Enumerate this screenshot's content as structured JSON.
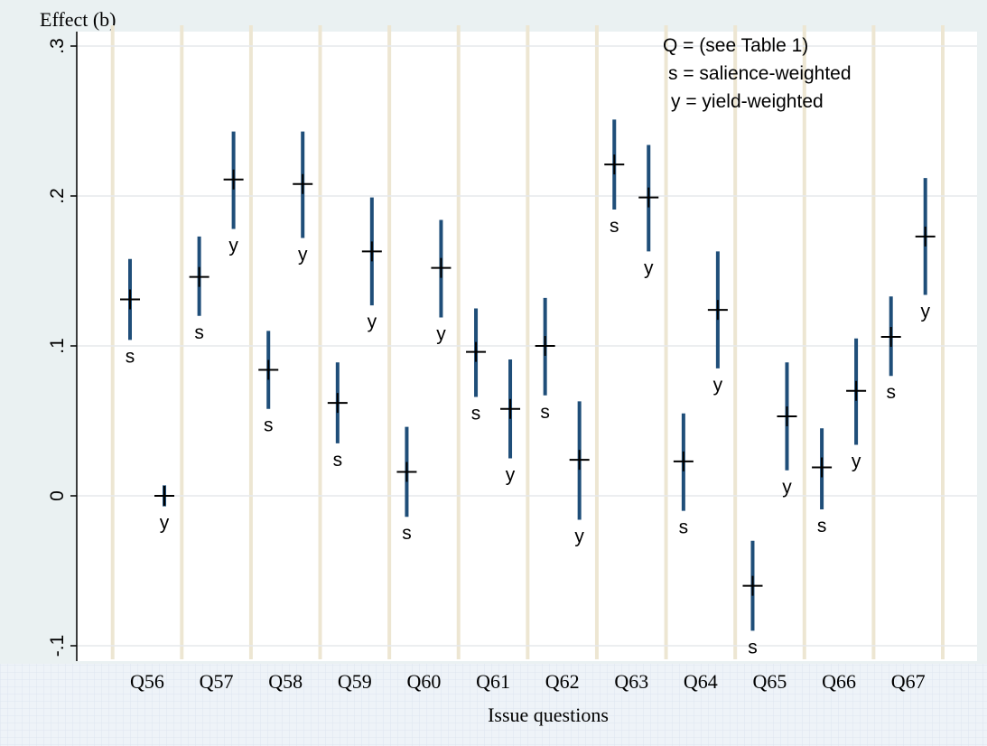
{
  "chart_data": {
    "type": "errorbar",
    "title": "Effect (b)",
    "xlabel": "Issue questions",
    "legend_lines": [
      "Q = (see Table 1)",
      "s = salience-weighted",
      "y = yield-weighted"
    ],
    "categories": [
      "Q56",
      "Q57",
      "Q58",
      "Q59",
      "Q60",
      "Q61",
      "Q62",
      "Q63",
      "Q64",
      "Q65",
      "Q66",
      "Q67"
    ],
    "series": [
      {
        "name": "s",
        "color": "#1f4e79",
        "values": [
          0.131,
          0.146,
          0.084,
          0.062,
          0.016,
          0.096,
          0.1,
          0.221,
          0.023,
          -0.06,
          0.019,
          0.106
        ],
        "lower": [
          0.104,
          0.12,
          0.058,
          0.035,
          -0.014,
          0.066,
          0.067,
          0.191,
          -0.01,
          -0.09,
          -0.009,
          0.08
        ],
        "upper": [
          0.158,
          0.173,
          0.11,
          0.089,
          0.046,
          0.125,
          0.132,
          0.251,
          0.055,
          -0.03,
          0.045,
          0.133
        ]
      },
      {
        "name": "y",
        "color": "#1f4e79",
        "values": [
          0,
          0.211,
          0.208,
          0.163,
          0.152,
          0.058,
          0.024,
          0.199,
          0.124,
          0.053,
          0.07,
          0.173
        ],
        "lower": [
          -0.007,
          0.178,
          0.172,
          0.127,
          0.119,
          0.025,
          -0.016,
          0.163,
          0.085,
          0.017,
          0.034,
          0.134
        ],
        "upper": [
          0.007,
          0.243,
          0.243,
          0.199,
          0.184,
          0.091,
          0.063,
          0.234,
          0.163,
          0.089,
          0.105,
          0.212
        ]
      }
    ],
    "ylim": [
      -0.11,
      0.31
    ],
    "yticks": [
      {
        "value": -0.1,
        "label": "-.1"
      },
      0,
      {
        "value": 0.1,
        "label": ".1"
      },
      {
        "value": 0.2,
        "label": ".2"
      },
      {
        "value": 0.3,
        "label": ".3"
      }
    ],
    "grid": true
  }
}
